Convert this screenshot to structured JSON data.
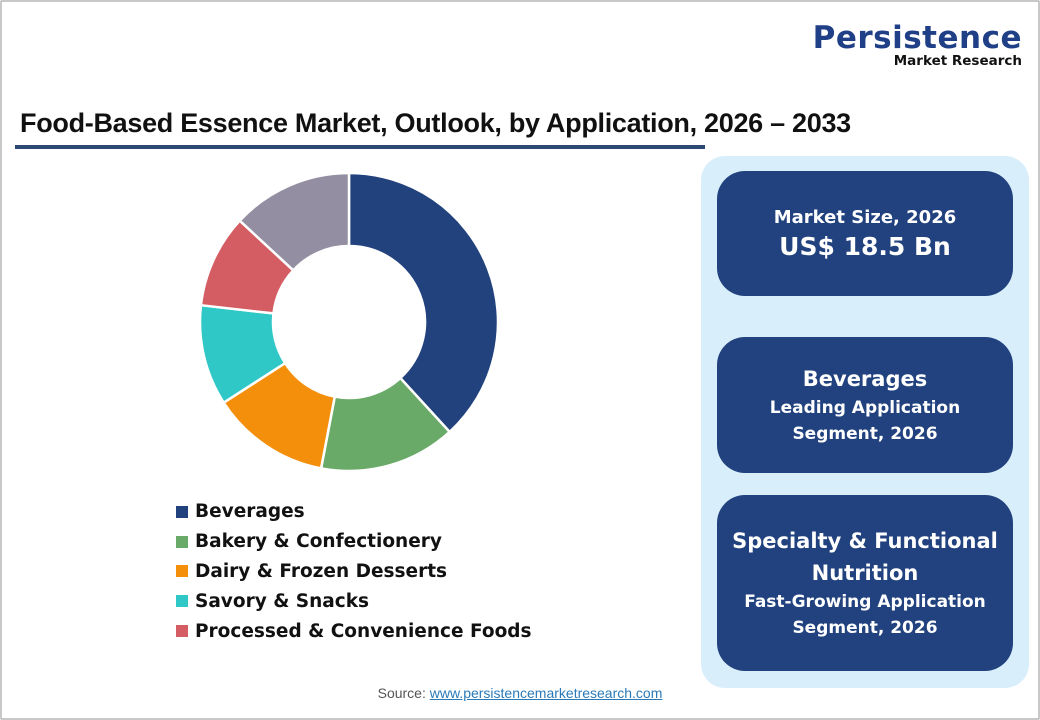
{
  "logo": {
    "brand": "Persistence",
    "tagline": "Market Research",
    "brand_color": "#1f3f86"
  },
  "title": "Food-Based Essence Market, Outlook, by Application, 2026 – 2033",
  "legend": [
    {
      "label": "Beverages",
      "color": "#22427e"
    },
    {
      "label": "Bakery & Confectionery",
      "color": "#6aaa68"
    },
    {
      "label": "Dairy & Frozen Desserts",
      "color": "#f48f0c"
    },
    {
      "label": "Savory & Snacks",
      "color": "#2fc8c6"
    },
    {
      "label": "Processed & Convenience Foods",
      "color": "#d45c63"
    }
  ],
  "chart_data": {
    "type": "pie",
    "subtype": "donut",
    "title": "Food-Based Essence Market, Outlook, by Application, 2026 – 2033",
    "categories": [
      "Beverages",
      "Bakery & Confectionery",
      "Dairy & Frozen Desserts",
      "Savory & Snacks",
      "Processed & Convenience Foods",
      "Others (unlabeled)"
    ],
    "values": [
      38.2,
      14.8,
      12.9,
      10.9,
      10.1,
      13.1
    ],
    "unit": "% share (estimated from segment angles)",
    "colors": [
      "#22427e",
      "#6aaa68",
      "#f48f0c",
      "#2fc8c6",
      "#d45c63",
      "#948ea3"
    ],
    "legend_position": "bottom",
    "start_angle": "12 o'clock, clockwise"
  },
  "cards": [
    {
      "line1": "Market Size, 2026",
      "line2": "US$ 18.5 Bn"
    },
    {
      "line1": "Beverages",
      "line2": "Leading Application",
      "line3": "Segment, 2026"
    },
    {
      "line1": "Specialty & Functional",
      "line1b": "Nutrition",
      "line2": "Fast-Growing Application",
      "line3": "Segment, 2026"
    }
  ],
  "source": {
    "label": "Source: ",
    "link": "www.persistencemarketresearch.com"
  }
}
